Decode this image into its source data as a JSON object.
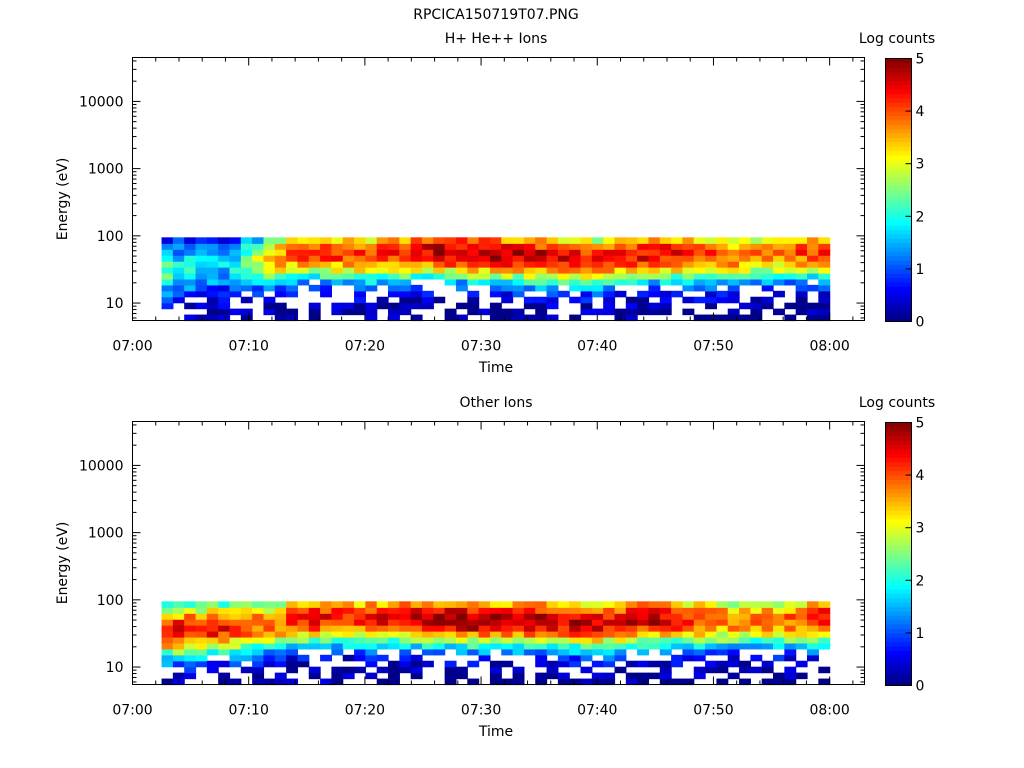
{
  "figure": {
    "title": "RPCICA150719T07.PNG"
  },
  "chart_data": [
    {
      "type": "heatmap",
      "title": "H+ He++ Ions",
      "xlabel": "Time",
      "ylabel": "Energy (eV)",
      "yscale": "log",
      "xlim": [
        "07:00",
        "08:03"
      ],
      "ylim": [
        5.5,
        45000
      ],
      "x_ticks": [
        "07:00",
        "07:10",
        "07:20",
        "07:30",
        "07:40",
        "07:50",
        "08:00"
      ],
      "y_ticks": [
        "10",
        "100",
        "1000",
        "10000"
      ],
      "colorbar": {
        "label": "Log counts",
        "range": [
          0,
          5
        ],
        "ticks": [
          "0",
          "1",
          "2",
          "3",
          "4",
          "5"
        ]
      },
      "grid": false,
      "data_time_range": [
        "07:02.5",
        "08:00"
      ],
      "data_energy_range": [
        5.5,
        95
      ],
      "peak_log_counts_by_time": [
        {
          "time": "07:03",
          "energy": 30,
          "value": 2.2
        },
        {
          "time": "07:08",
          "energy": 35,
          "value": 1.6
        },
        {
          "time": "07:12",
          "energy": 45,
          "value": 3.5
        },
        {
          "time": "07:15",
          "energy": 60,
          "value": 4.2
        },
        {
          "time": "07:20",
          "energy": 50,
          "value": 4.0
        },
        {
          "time": "07:25",
          "energy": 60,
          "value": 4.6
        },
        {
          "time": "07:30",
          "energy": 55,
          "value": 4.8
        },
        {
          "time": "07:35",
          "energy": 50,
          "value": 4.7
        },
        {
          "time": "07:40",
          "energy": 45,
          "value": 4.3
        },
        {
          "time": "07:45",
          "energy": 55,
          "value": 4.5
        },
        {
          "time": "07:50",
          "energy": 50,
          "value": 4.0
        },
        {
          "time": "07:55",
          "energy": 55,
          "value": 3.8
        },
        {
          "time": "08:00",
          "energy": 60,
          "value": 4.3
        }
      ]
    },
    {
      "type": "heatmap",
      "title": "Other Ions",
      "xlabel": "Time",
      "ylabel": "Energy (eV)",
      "yscale": "log",
      "xlim": [
        "07:00",
        "08:03"
      ],
      "ylim": [
        5.5,
        45000
      ],
      "x_ticks": [
        "07:00",
        "07:10",
        "07:20",
        "07:30",
        "07:40",
        "07:50",
        "08:00"
      ],
      "y_ticks": [
        "10",
        "100",
        "1000",
        "10000"
      ],
      "colorbar": {
        "label": "Log counts",
        "range": [
          0,
          5
        ],
        "ticks": [
          "0",
          "1",
          "2",
          "3",
          "4",
          "5"
        ]
      },
      "grid": false,
      "data_time_range": [
        "07:02.5",
        "08:00"
      ],
      "data_energy_range": [
        5.5,
        95
      ],
      "peak_log_counts_by_time": [
        {
          "time": "07:03",
          "energy": 35,
          "value": 4.5
        },
        {
          "time": "07:08",
          "energy": 40,
          "value": 4.3
        },
        {
          "time": "07:12",
          "energy": 45,
          "value": 3.8
        },
        {
          "time": "07:15",
          "energy": 55,
          "value": 4.5
        },
        {
          "time": "07:20",
          "energy": 55,
          "value": 4.2
        },
        {
          "time": "07:25",
          "energy": 55,
          "value": 4.9
        },
        {
          "time": "07:30",
          "energy": 50,
          "value": 4.9
        },
        {
          "time": "07:35",
          "energy": 50,
          "value": 4.8
        },
        {
          "time": "07:40",
          "energy": 45,
          "value": 4.5
        },
        {
          "time": "07:45",
          "energy": 55,
          "value": 4.7
        },
        {
          "time": "07:50",
          "energy": 50,
          "value": 3.9
        },
        {
          "time": "07:55",
          "energy": 50,
          "value": 3.8
        },
        {
          "time": "08:00",
          "energy": 55,
          "value": 4.4
        }
      ]
    }
  ]
}
